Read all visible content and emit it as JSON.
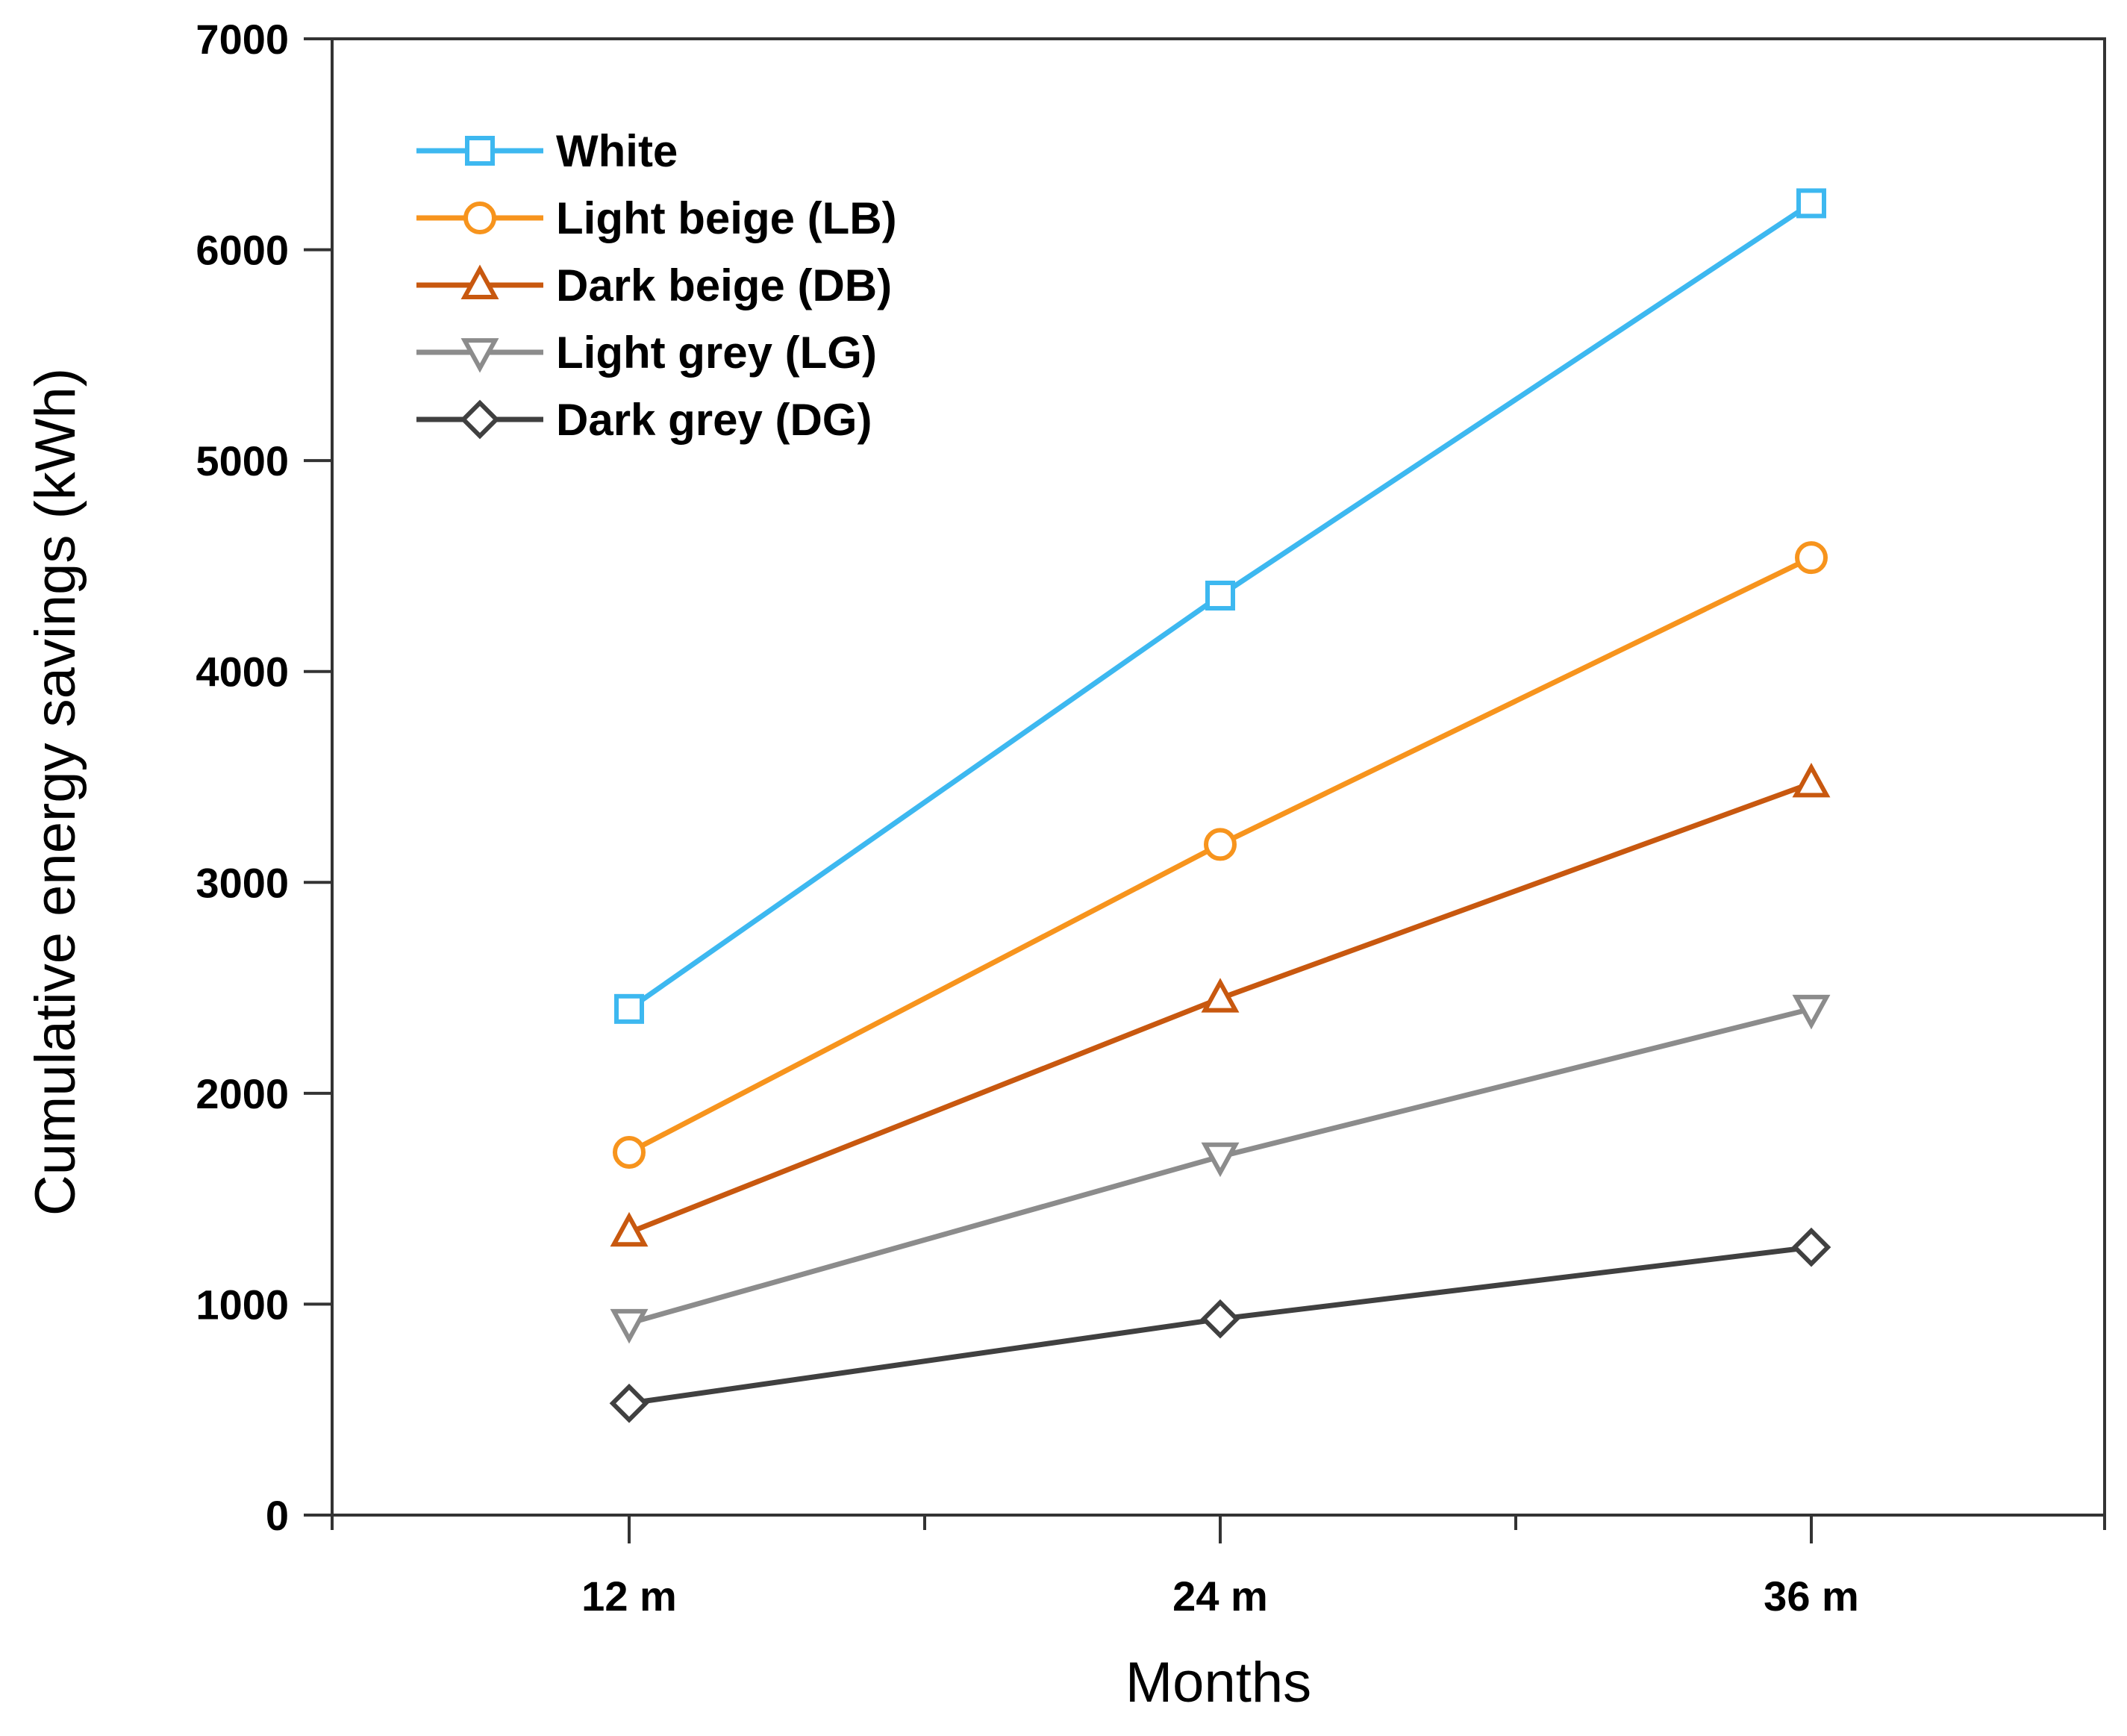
{
  "chart_data": {
    "type": "line",
    "title": "",
    "xlabel": "Months",
    "ylabel": "Cumulative energy savings (kWh)",
    "categories": [
      "12 m",
      "24 m",
      "36 m"
    ],
    "ylim": [
      0,
      7000
    ],
    "yticks": [
      0,
      1000,
      2000,
      3000,
      4000,
      5000,
      6000,
      7000
    ],
    "grid": false,
    "legend_position": "top-left",
    "series": [
      {
        "name": "White",
        "marker": "square",
        "color": "#3db8f0",
        "values": [
          2400,
          4360,
          6220
        ]
      },
      {
        "name": "Light beige (LB)",
        "marker": "circle",
        "color": "#f7941d",
        "values": [
          1720,
          3180,
          4540
        ]
      },
      {
        "name": "Dark beige (DB)",
        "marker": "triangle-up",
        "color": "#c8580f",
        "values": [
          1340,
          2450,
          3470
        ]
      },
      {
        "name": "Light grey (LG)",
        "marker": "triangle-down",
        "color": "#8c8c8c",
        "values": [
          910,
          1700,
          2400
        ]
      },
      {
        "name": "Dark grey (DG)",
        "marker": "diamond",
        "color": "#404040",
        "values": [
          530,
          930,
          1270
        ]
      }
    ]
  }
}
